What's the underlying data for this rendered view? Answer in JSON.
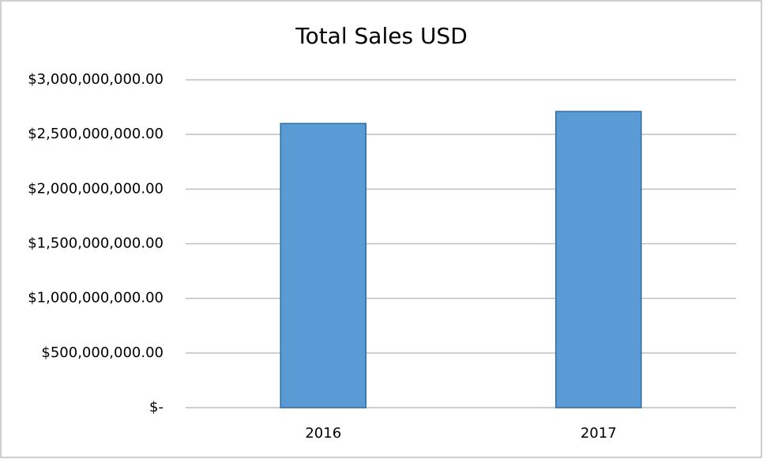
{
  "chart_data": {
    "type": "bar",
    "title": "Total Sales USD",
    "categories": [
      "2016",
      "2017"
    ],
    "values": [
      2600000000,
      2710000000
    ],
    "color": "#5b9bd5",
    "ylim": [
      0,
      3000000000
    ],
    "yticks": [
      {
        "value": 0,
        "label": "$-"
      },
      {
        "value": 500000000,
        "label": "$500,000,000.00"
      },
      {
        "value": 1000000000,
        "label": "$1,000,000,000.00"
      },
      {
        "value": 1500000000,
        "label": "$1,500,000,000.00"
      },
      {
        "value": 2000000000,
        "label": "$2,000,000,000.00"
      },
      {
        "value": 2500000000,
        "label": "$2,500,000,000.00"
      },
      {
        "value": 3000000000,
        "label": "$3,000,000,000.00"
      }
    ],
    "grid": true
  }
}
